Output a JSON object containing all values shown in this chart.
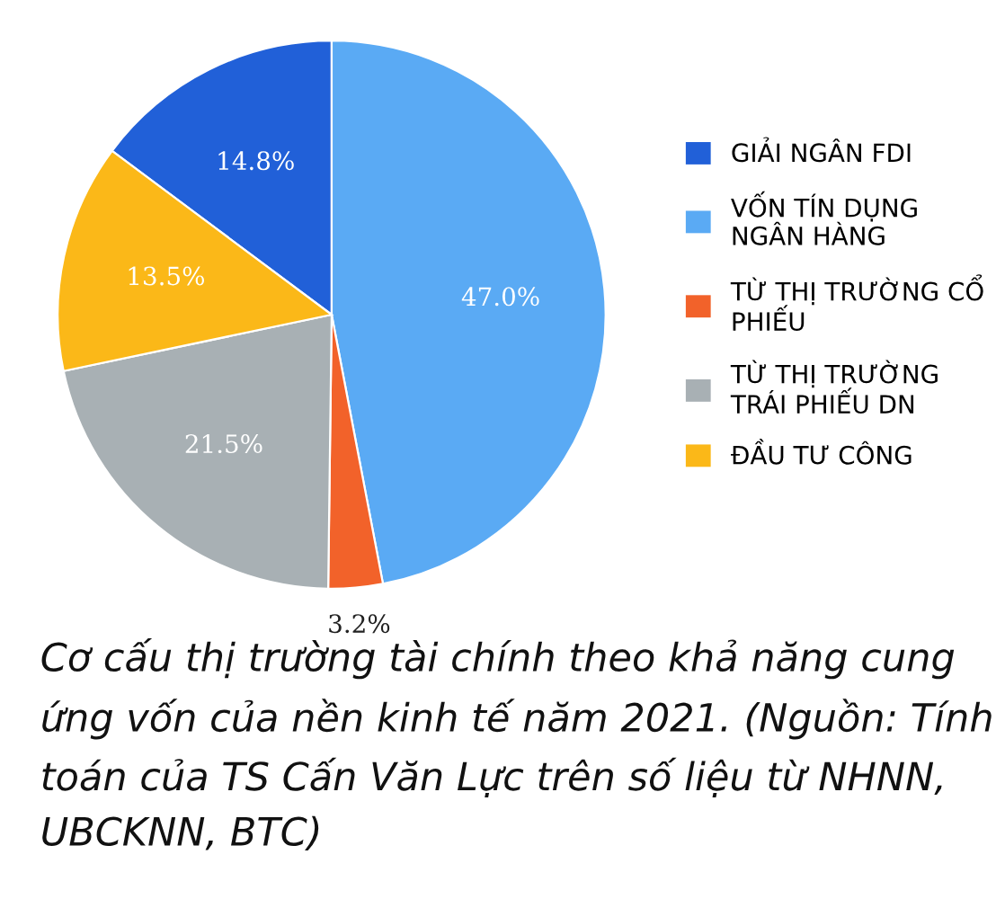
{
  "chart_data": {
    "type": "pie",
    "categories": [
      "GIẢI NGÂN FDI",
      "VỐN TÍN DỤNG NGÂN HÀNG",
      "TỪ THỊ TRƯỜNG CỔ PHIẾU",
      "TỪ THỊ TRƯỜNG TRÁI PHIẾU DN",
      "ĐẦU TƯ CÔNG"
    ],
    "values": [
      14.8,
      47.0,
      3.2,
      21.5,
      13.5
    ],
    "colors": [
      "#2160d8",
      "#5aaaf4",
      "#f2622a",
      "#a8b0b4",
      "#fbb818"
    ],
    "value_labels": [
      "14.8%",
      "47.0%",
      "3.2%",
      "21.5%",
      "13.5%"
    ],
    "legend": "right",
    "annotations": [
      "Cơ cấu thị trường tài chính theo khả năng cung ứng vốn của nền kinh tế năm 2021. (Nguồn: Tính toán của TS Cấn Văn Lực trên số liệu từ NHNN, UBCKNN, BTC)"
    ]
  }
}
